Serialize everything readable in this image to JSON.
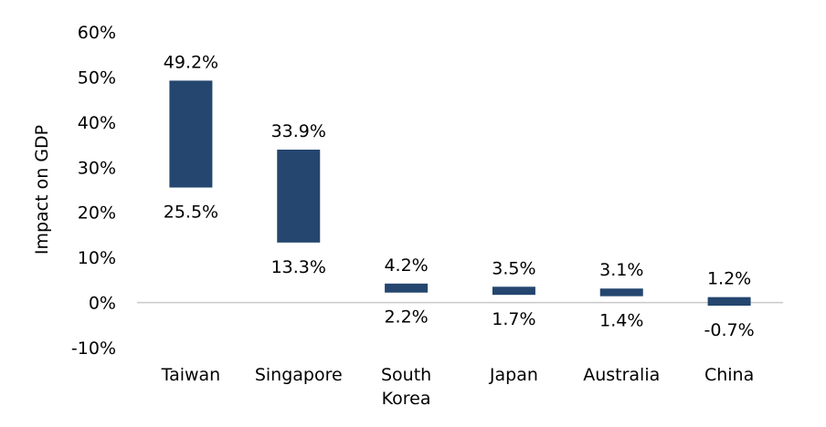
{
  "chart_data": {
    "type": "bar",
    "subtype": "floating-range",
    "title": "",
    "xlabel": "",
    "ylabel": "Impact on GDP",
    "ylim": [
      -10,
      60
    ],
    "yticks": [
      -10,
      0,
      10,
      20,
      30,
      40,
      50,
      60
    ],
    "ytick_labels": [
      "-10%",
      "0%",
      "10%",
      "20%",
      "30%",
      "40%",
      "50%",
      "60%"
    ],
    "grid": false,
    "legend": "none",
    "bar_color": "#24466F",
    "zero_line_color": "#C9C9C9",
    "categories": [
      "Taiwan",
      "Singapore",
      "South Korea",
      "Japan",
      "Australia",
      "China"
    ],
    "category_label_lines": [
      [
        "Taiwan"
      ],
      [
        "Singapore"
      ],
      [
        "South",
        "Korea"
      ],
      [
        "Japan"
      ],
      [
        "Australia"
      ],
      [
        "China"
      ]
    ],
    "high": [
      49.2,
      33.9,
      4.2,
      3.5,
      3.1,
      1.2
    ],
    "low": [
      25.5,
      13.3,
      2.2,
      1.7,
      1.4,
      -0.7
    ],
    "high_labels": [
      "49.2%",
      "33.9%",
      "4.2%",
      "3.5%",
      "3.1%",
      "1.2%"
    ],
    "low_labels": [
      "25.5%",
      "13.3%",
      "2.2%",
      "1.7%",
      "1.4%",
      "-0.7%"
    ]
  }
}
